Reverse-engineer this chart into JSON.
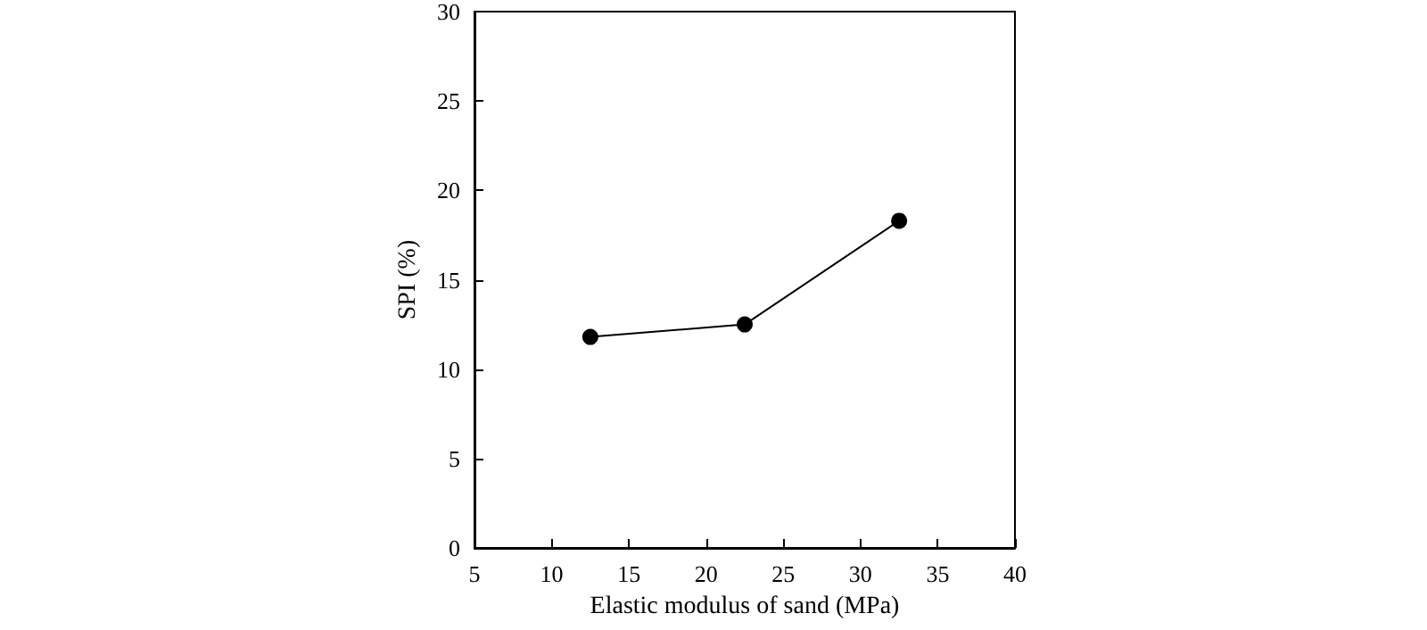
{
  "chart_data": {
    "type": "line",
    "xlabel": "Elastic modulus of sand (MPa)",
    "ylabel": "SPI (%)",
    "x": [
      12.5,
      22.5,
      32.5
    ],
    "series": [
      {
        "color": "#000000",
        "values": [
          11.8,
          12.5,
          18.3
        ]
      }
    ],
    "xlim": [
      5,
      40
    ],
    "xticks": [
      5,
      10,
      15,
      20,
      25,
      30,
      35,
      40
    ],
    "ylim": [
      0,
      30
    ],
    "yticks": [
      0,
      5,
      10,
      15,
      20,
      25,
      30
    ],
    "grid": false,
    "marker": "circle",
    "line_style": "solid"
  }
}
